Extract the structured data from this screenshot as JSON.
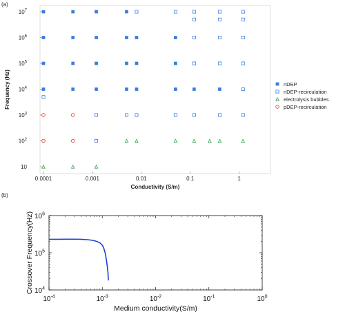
{
  "panels": {
    "a_label": "(a)",
    "b_label": "(b)"
  },
  "chart_data": [
    {
      "type": "scatter",
      "xscale": "log",
      "yscale": "log",
      "xlabel": "Conductivity (S/m)",
      "ylabel": "Frequency (Hz)",
      "xlim": [
        0.0001,
        2
      ],
      "ylim": [
        10,
        10000000
      ],
      "xticks": [
        {
          "value": 0.0001,
          "label": "0.0001"
        },
        {
          "value": 0.001,
          "label": "0.001"
        },
        {
          "value": 0.01,
          "label": "0.01"
        },
        {
          "value": 0.1,
          "label": "0.1"
        },
        {
          "value": 1,
          "label": "1"
        }
      ],
      "yticks": [
        {
          "value": 10,
          "base": "10",
          "exp": ""
        },
        {
          "value": 100,
          "base": "10",
          "exp": "2"
        },
        {
          "value": 1000,
          "base": "10",
          "exp": "3"
        },
        {
          "value": 10000,
          "base": "10",
          "exp": "4"
        },
        {
          "value": 100000,
          "base": "10",
          "exp": "5"
        },
        {
          "value": 1000000,
          "base": "10",
          "exp": "6"
        },
        {
          "value": 10000000,
          "base": "10",
          "exp": "7"
        }
      ],
      "grid": false,
      "legend_position": "right",
      "series": [
        {
          "name": "nDEP",
          "marker": "filled-square",
          "color": "#3b7ddd",
          "points": [
            [
              0.0001,
              10000000
            ],
            [
              0.0004,
              10000000
            ],
            [
              0.0012,
              10000000
            ],
            [
              0.005,
              10000000
            ],
            [
              0.0001,
              1000000
            ],
            [
              0.0004,
              1000000
            ],
            [
              0.0012,
              1000000
            ],
            [
              0.005,
              1000000
            ],
            [
              0.008,
              1000000
            ],
            [
              0.05,
              1000000
            ],
            [
              0.0001,
              100000
            ],
            [
              0.0004,
              100000
            ],
            [
              0.0012,
              100000
            ],
            [
              0.005,
              100000
            ],
            [
              0.008,
              100000
            ],
            [
              0.05,
              100000
            ],
            [
              0.0001,
              10000
            ],
            [
              0.0004,
              10000
            ],
            [
              0.0012,
              10000
            ],
            [
              0.005,
              10000
            ],
            [
              0.008,
              10000
            ],
            [
              0.05,
              10000
            ],
            [
              0.12,
              10000
            ],
            [
              0.4,
              10000
            ]
          ]
        },
        {
          "name": "nDEP-recirculation",
          "marker": "open-square",
          "color": "#3b7ddd",
          "points": [
            [
              0.008,
              10000000
            ],
            [
              0.05,
              10000000
            ],
            [
              0.12,
              10000000
            ],
            [
              0.4,
              10000000
            ],
            [
              1.2,
              10000000
            ],
            [
              0.12,
              5000000
            ],
            [
              0.4,
              5000000
            ],
            [
              1.2,
              5000000
            ],
            [
              0.12,
              1000000
            ],
            [
              0.4,
              1000000
            ],
            [
              1.2,
              1000000
            ],
            [
              0.12,
              100000
            ],
            [
              0.4,
              100000
            ],
            [
              1.2,
              100000
            ],
            [
              1.2,
              10000
            ],
            [
              0.0001,
              5000
            ],
            [
              0.0012,
              1000
            ],
            [
              0.005,
              1000
            ],
            [
              0.008,
              1000
            ],
            [
              0.05,
              1000
            ],
            [
              0.12,
              1000
            ],
            [
              0.4,
              1000
            ],
            [
              1.2,
              1000
            ],
            [
              0.0012,
              100
            ]
          ]
        },
        {
          "name": "electrolysis bubbles",
          "marker": "open-triangle",
          "color": "#2fa84f",
          "points": [
            [
              0.005,
              100
            ],
            [
              0.008,
              100
            ],
            [
              0.05,
              100
            ],
            [
              0.12,
              100
            ],
            [
              0.25,
              100
            ],
            [
              0.4,
              100
            ],
            [
              1.2,
              100
            ],
            [
              0.0001,
              10
            ],
            [
              0.0004,
              10
            ],
            [
              0.0012,
              10
            ]
          ]
        },
        {
          "name": "pDEP-recirculation",
          "marker": "open-circle",
          "color": "#e0302a",
          "points": [
            [
              0.0001,
              1000
            ],
            [
              0.0004,
              1000
            ],
            [
              0.0001,
              100
            ],
            [
              0.0004,
              100
            ]
          ]
        }
      ]
    },
    {
      "type": "line",
      "xscale": "log",
      "yscale": "log",
      "xlabel": "Medium conductivity(S/m)",
      "ylabel": "Crossover Frequency(Hz)",
      "xlim": [
        0.0001,
        1
      ],
      "ylim": [
        10000,
        1000000
      ],
      "xticks": [
        {
          "value": 0.0001,
          "base": "10",
          "exp": "-4"
        },
        {
          "value": 0.001,
          "base": "10",
          "exp": "-3"
        },
        {
          "value": 0.01,
          "base": "10",
          "exp": "-2"
        },
        {
          "value": 0.1,
          "base": "10",
          "exp": "-1"
        },
        {
          "value": 1,
          "base": "10",
          "exp": "0"
        }
      ],
      "yticks": [
        {
          "value": 10000,
          "base": "10",
          "exp": "4"
        },
        {
          "value": 100000,
          "base": "10",
          "exp": "5"
        },
        {
          "value": 1000000,
          "base": "10",
          "exp": "6"
        }
      ],
      "grid": false,
      "series": [
        {
          "color": "#1f3fd6",
          "x": [
            0.0001,
            0.00015,
            0.0002,
            0.0003,
            0.0004,
            0.0005,
            0.0006,
            0.0007,
            0.0008,
            0.0009,
            0.001,
            0.00105,
            0.0011,
            0.00115,
            0.0012,
            0.00125,
            0.00128,
            0.0013
          ],
          "y": [
            230000,
            230000,
            231000,
            232000,
            230000,
            226000,
            220000,
            212000,
            200000,
            185000,
            160000,
            140000,
            115000,
            90000,
            60000,
            40000,
            28000,
            18000
          ]
        }
      ]
    }
  ]
}
